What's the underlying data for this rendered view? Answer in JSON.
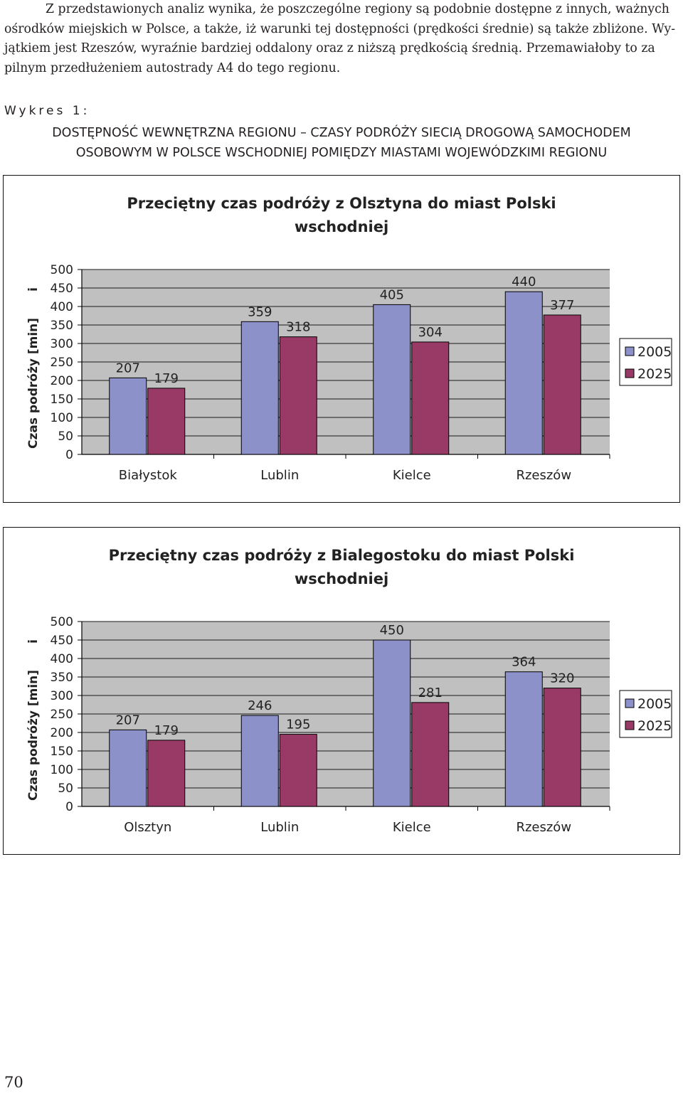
{
  "paragraph": {
    "lines": [
      "Z przedstawionych analiz wynika, że poszczególne regiony są podobnie dostępne z innych, ważnych",
      "ośrodków miejskich w Polsce, a także, iż warunki tej dostępności (prędkości średnie) są także zbliżone. Wy-",
      "jątkiem jest Rzeszów, wyraźnie bardziej oddalony oraz z niższą prędkością średnią. Przemawiałoby to za",
      "pilnym przedłużeniem autostrady A4 do tego regionu."
    ]
  },
  "figure_label": "Wykres 1:",
  "figure_heading": {
    "line1": "DOSTĘPNOŚĆ WEWNĘTRZNA REGIONU – CZASY PODRÓŻY SIECIĄ DROGOWĄ SAMOCHODEM",
    "line2": "OSOBOWYM W POLSCE WSCHODNIEJ POMIĘDZY MIASTAMI WOJEWÓDZKIMI REGIONU"
  },
  "colors": {
    "series_2005": "#8c91c9",
    "series_2025": "#993a66",
    "plot_bg": "#c0c0c0",
    "chart_bg": "#ffffff"
  },
  "chart_data": [
    {
      "type": "bar",
      "title": "Przeciętny czas podróży z Olsztyna do miast Polski wschodniej",
      "title_lines": [
        "Przeciętny czas podróży z Olsztyna do miast Polski",
        "wschodniej"
      ],
      "ylabel": "Czas podróży [min]",
      "ylabel_marker": "i",
      "categories": [
        "Białystok",
        "Lublin",
        "Kielce",
        "Rzeszów"
      ],
      "series": [
        {
          "name": "2005",
          "values": [
            207,
            359,
            405,
            440
          ]
        },
        {
          "name": "2025",
          "values": [
            179,
            318,
            304,
            377
          ]
        }
      ],
      "ylim": [
        0,
        500
      ],
      "yticks": [
        0,
        50,
        100,
        150,
        200,
        250,
        300,
        350,
        400,
        450,
        500
      ],
      "grid": true,
      "legend": "right"
    },
    {
      "type": "bar",
      "title": "Przeciętny czas podróży z Bialegostoku do miast Polski wschodniej",
      "title_lines": [
        "Przeciętny czas podróży z Bialegostoku do miast Polski",
        "wschodniej"
      ],
      "ylabel": "Czas podróży [min]",
      "ylabel_marker": "i",
      "categories": [
        "Olsztyn",
        "Lublin",
        "Kielce",
        "Rzeszów"
      ],
      "series": [
        {
          "name": "2005",
          "values": [
            207,
            246,
            450,
            364
          ]
        },
        {
          "name": "2025",
          "values": [
            179,
            195,
            281,
            320
          ]
        }
      ],
      "ylim": [
        0,
        500
      ],
      "yticks": [
        0,
        50,
        100,
        150,
        200,
        250,
        300,
        350,
        400,
        450,
        500
      ],
      "grid": true,
      "legend": "right"
    }
  ],
  "page_number": "70"
}
